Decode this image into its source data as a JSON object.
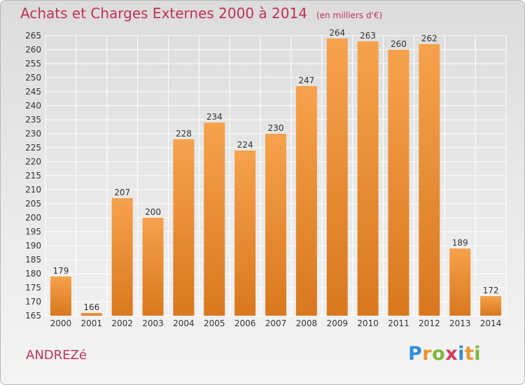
{
  "header": {
    "title": "Achats et Charges Externes 2000 à 2014",
    "unit": "(en milliers d'€)"
  },
  "footer": {
    "commune": "ANDREZé",
    "brand": "Proxiti"
  },
  "brand_letters": [
    {
      "char": "P",
      "color": "#2f8fd8"
    },
    {
      "char": "r",
      "color": "#e8962a"
    },
    {
      "char": "o",
      "color": "#7cb83a"
    },
    {
      "char": "x",
      "color": "#d63a5a"
    },
    {
      "char": "i",
      "color": "#2f8fd8"
    },
    {
      "char": "t",
      "color": "#e8962a"
    },
    {
      "char": "i",
      "color": "#7cb83a"
    }
  ],
  "colors": {
    "title": "#c0305a",
    "bar_light": "#f6a24c",
    "bar_dark": "#d9781e",
    "grid": "#ffffff"
  },
  "chart_data": {
    "type": "bar",
    "title": "Achats et Charges Externes 2000 à 2014",
    "categories": [
      "2000",
      "2001",
      "2002",
      "2003",
      "2004",
      "2005",
      "2006",
      "2007",
      "2008",
      "2009",
      "2010",
      "2011",
      "2012",
      "2013",
      "2014"
    ],
    "values": [
      179,
      166,
      207,
      200,
      228,
      234,
      224,
      230,
      247,
      264,
      263,
      260,
      262,
      189,
      172
    ],
    "ylim": [
      165,
      265
    ],
    "yticks": [
      165,
      170,
      175,
      180,
      185,
      190,
      195,
      200,
      205,
      210,
      215,
      220,
      225,
      230,
      235,
      240,
      245,
      250,
      255,
      260,
      265
    ],
    "grid": true,
    "xlabel": "",
    "ylabel": ""
  }
}
